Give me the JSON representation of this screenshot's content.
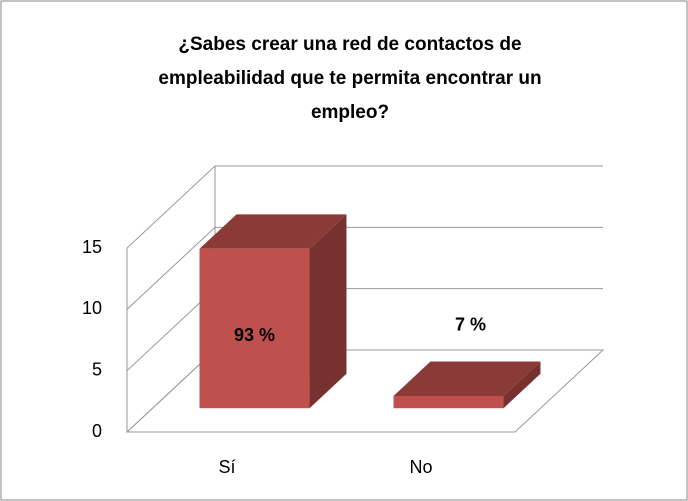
{
  "chart_data": {
    "type": "bar3d",
    "title": [
      "¿Sabes crear una red de contactos de",
      "empleabilidad que te permita encontrar un",
      "empleo?"
    ],
    "categories": [
      "Sí",
      "No"
    ],
    "values": [
      13,
      1
    ],
    "value_labels": [
      "93 %",
      "7 %"
    ],
    "color": "#c0504d",
    "ylim": [
      0,
      15
    ],
    "yticks": [
      0,
      5,
      10,
      15
    ],
    "grid": true
  }
}
